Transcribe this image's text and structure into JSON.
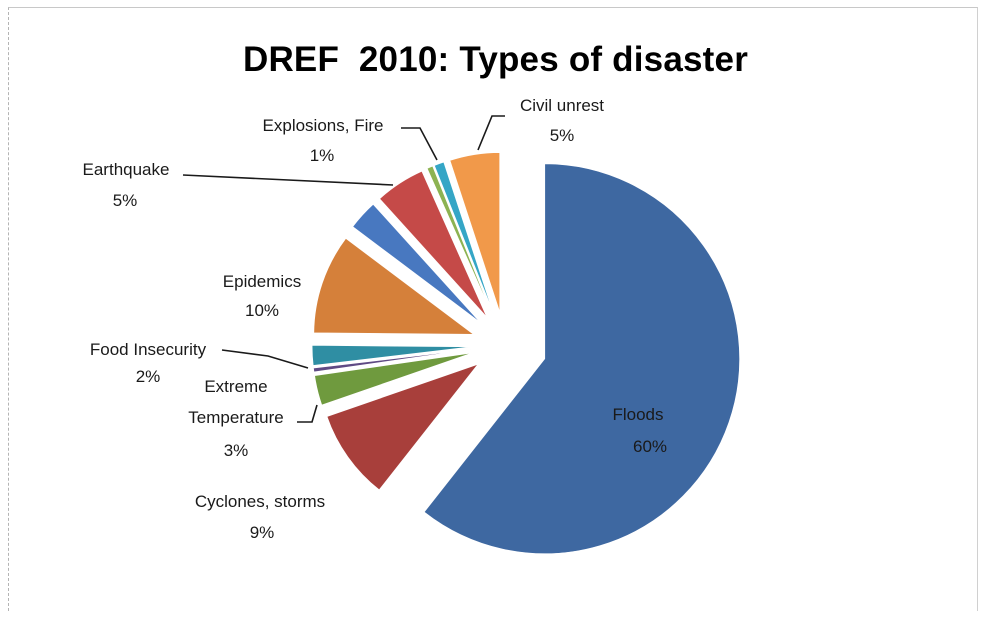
{
  "chart_data": {
    "type": "pie",
    "title": "DREF  2010: Types of disaster",
    "slices": [
      {
        "label": "Floods",
        "value": 60,
        "display": "60%",
        "color": "#3e68a1"
      },
      {
        "label": "Cyclones, storms",
        "value": 9,
        "display": "9%",
        "color": "#a83f3b"
      },
      {
        "label": "Extreme Temperature",
        "value": 3,
        "display": "3%",
        "color": "#6f9a3e"
      },
      {
        "label": "",
        "value": 0.4,
        "display": "",
        "color": "#5f4a84"
      },
      {
        "label": "Food Insecurity",
        "value": 2,
        "display": "2%",
        "color": "#2f8ea3"
      },
      {
        "label": "Epidemics",
        "value": 10,
        "display": "10%",
        "color": "#d5803a"
      },
      {
        "label": "",
        "value": 3,
        "display": "",
        "color": "#4878c0"
      },
      {
        "label": "Earthquake",
        "value": 5,
        "display": "5%",
        "color": "#c54a48"
      },
      {
        "label": "",
        "value": 0.6,
        "display": "",
        "color": "#8db352"
      },
      {
        "label": "Explosions, Fire",
        "value": 1,
        "display": "1%",
        "color": "#35a6c6"
      },
      {
        "label": "Civil unrest",
        "value": 5,
        "display": "5%",
        "color": "#f1994a"
      }
    ]
  }
}
